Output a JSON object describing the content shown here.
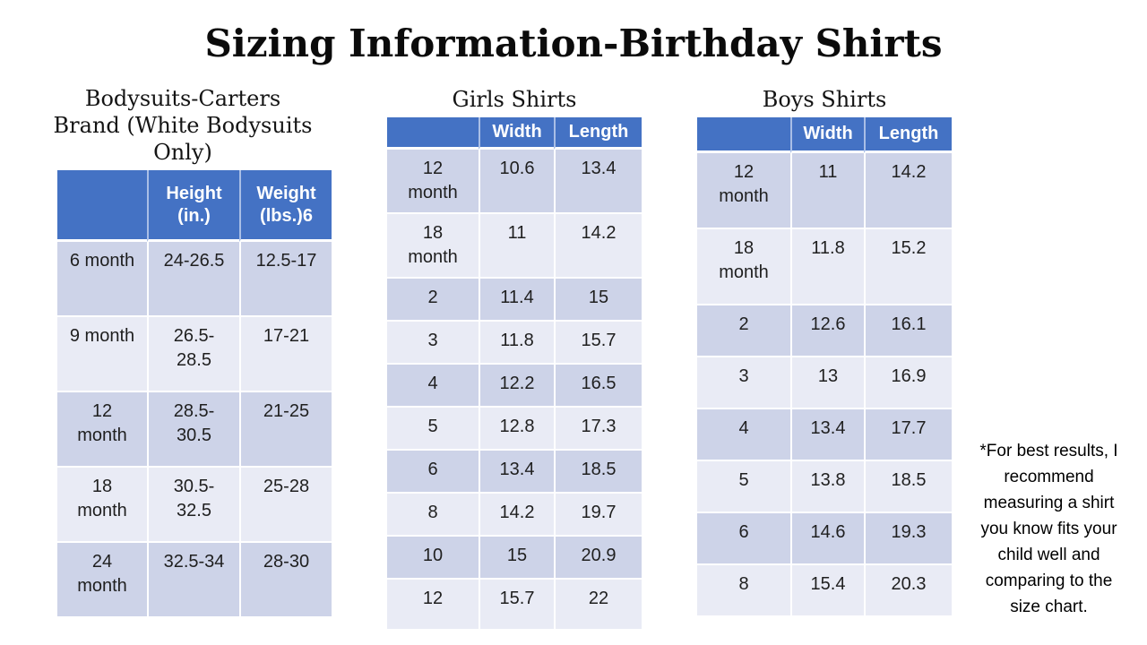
{
  "title": "Sizing Information-Birthday Shirts",
  "colors": {
    "table_header_bg": "#4472C4",
    "table_header_text": "#FFFFFF",
    "row_band_dark": "#CDD3E8",
    "row_band_light": "#E9EBF5",
    "background": "#FFFFFF",
    "body_text": "#1F1F1F"
  },
  "tables": {
    "bodysuits": {
      "heading": "Bodysuits-Carters Brand (White Bodysuits Only)",
      "heading_lines": [
        "Bodysuits-Carters",
        "Brand (White Bodysuits",
        "Only)"
      ],
      "columns": [
        "",
        "Height (in.)",
        "Weight (lbs.)6"
      ],
      "rows": [
        [
          "6 month",
          "24-26.5",
          "12.5-17"
        ],
        [
          "9 month",
          "26.5-28.5",
          "17-21"
        ],
        [
          "12 month",
          "28.5-30.5",
          "21-25"
        ],
        [
          "18 month",
          "30.5-32.5",
          "25-28"
        ],
        [
          "24 month",
          "32.5-34",
          "28-30"
        ]
      ]
    },
    "girls": {
      "heading": "Girls Shirts",
      "columns": [
        "",
        "Width",
        "Length"
      ],
      "rows": [
        [
          "12 month",
          "10.6",
          "13.4"
        ],
        [
          "18 month",
          "11",
          "14.2"
        ],
        [
          "2",
          "11.4",
          "15"
        ],
        [
          "3",
          "11.8",
          "15.7"
        ],
        [
          "4",
          "12.2",
          "16.5"
        ],
        [
          "5",
          "12.8",
          "17.3"
        ],
        [
          "6",
          "13.4",
          "18.5"
        ],
        [
          "8",
          "14.2",
          "19.7"
        ],
        [
          "10",
          "15",
          "20.9"
        ],
        [
          "12",
          "15.7",
          "22"
        ]
      ]
    },
    "boys": {
      "heading": "Boys Shirts",
      "columns": [
        "",
        "Width",
        "Length"
      ],
      "rows": [
        [
          "12 month",
          "11",
          "14.2"
        ],
        [
          "18 month",
          "11.8",
          "15.2"
        ],
        [
          "2",
          "12.6",
          "16.1"
        ],
        [
          "3",
          "13",
          "16.9"
        ],
        [
          "4",
          "13.4",
          "17.7"
        ],
        [
          "5",
          "13.8",
          "18.5"
        ],
        [
          "6",
          "14.6",
          "19.3"
        ],
        [
          "8",
          "15.4",
          "20.3"
        ]
      ]
    }
  },
  "note": "*For best results, I recommend measuring a shirt you know fits your child well and comparing to the size chart."
}
